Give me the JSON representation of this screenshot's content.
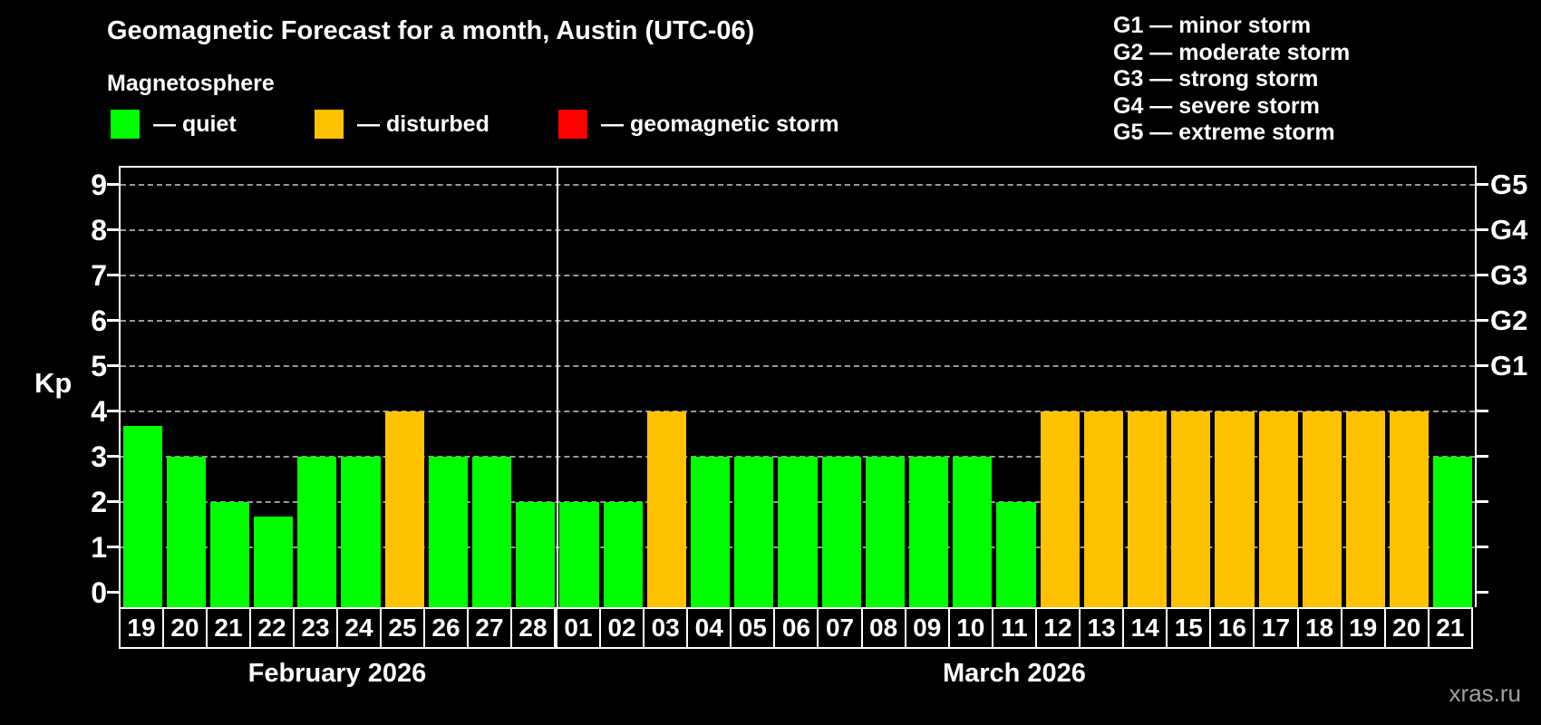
{
  "title": "Geomagnetic Forecast for a month, Austin (UTC-06)",
  "subtitle": "Magnetosphere",
  "watermark": "xras.ru",
  "colors": {
    "quiet": "#00ff00",
    "disturbed": "#ffc200",
    "storm": "#ff0000",
    "grid": "#999999",
    "axis": "#ffffff",
    "background": "#000000"
  },
  "legend": [
    {
      "key": "quiet",
      "label": "— quiet"
    },
    {
      "key": "disturbed",
      "label": "— disturbed"
    },
    {
      "key": "storm",
      "label": "— geomagnetic storm"
    }
  ],
  "storm_scale": [
    "G1 — minor storm",
    "G2 — moderate storm",
    "G3 — strong storm",
    "G4 — severe storm",
    "G5 — extreme storm"
  ],
  "chart_data": {
    "type": "bar",
    "title": "Geomagnetic Forecast for a month, Austin (UTC-06)",
    "xlabel": "",
    "ylabel": "Kp",
    "ylim": [
      0,
      9
    ],
    "y_ticks": [
      0,
      1,
      2,
      3,
      4,
      5,
      6,
      7,
      8,
      9
    ],
    "grid": "horizontal dashed at each integer Kp 1-9",
    "legend_position": "top",
    "right_axis": [
      {
        "label": "G1",
        "kp": 5
      },
      {
        "label": "G2",
        "kp": 6
      },
      {
        "label": "G3",
        "kp": 7
      },
      {
        "label": "G4",
        "kp": 8
      },
      {
        "label": "G5",
        "kp": 9
      }
    ],
    "months": [
      {
        "label": "February 2026",
        "days": [
          {
            "day": "19",
            "kp": 3.67,
            "status": "quiet"
          },
          {
            "day": "20",
            "kp": 3,
            "status": "quiet"
          },
          {
            "day": "21",
            "kp": 2,
            "status": "quiet"
          },
          {
            "day": "22",
            "kp": 1.67,
            "status": "quiet"
          },
          {
            "day": "23",
            "kp": 3,
            "status": "quiet"
          },
          {
            "day": "24",
            "kp": 3,
            "status": "quiet"
          },
          {
            "day": "25",
            "kp": 4,
            "status": "disturbed"
          },
          {
            "day": "26",
            "kp": 3,
            "status": "quiet"
          },
          {
            "day": "27",
            "kp": 3,
            "status": "quiet"
          },
          {
            "day": "28",
            "kp": 2,
            "status": "quiet"
          }
        ]
      },
      {
        "label": "March 2026",
        "days": [
          {
            "day": "01",
            "kp": 2,
            "status": "quiet"
          },
          {
            "day": "02",
            "kp": 2,
            "status": "quiet"
          },
          {
            "day": "03",
            "kp": 4,
            "status": "disturbed"
          },
          {
            "day": "04",
            "kp": 3,
            "status": "quiet"
          },
          {
            "day": "05",
            "kp": 3,
            "status": "quiet"
          },
          {
            "day": "06",
            "kp": 3,
            "status": "quiet"
          },
          {
            "day": "07",
            "kp": 3,
            "status": "quiet"
          },
          {
            "day": "08",
            "kp": 3,
            "status": "quiet"
          },
          {
            "day": "09",
            "kp": 3,
            "status": "quiet"
          },
          {
            "day": "10",
            "kp": 3,
            "status": "quiet"
          },
          {
            "day": "11",
            "kp": 2,
            "status": "quiet"
          },
          {
            "day": "12",
            "kp": 4,
            "status": "disturbed"
          },
          {
            "day": "13",
            "kp": 4,
            "status": "disturbed"
          },
          {
            "day": "14",
            "kp": 4,
            "status": "disturbed"
          },
          {
            "day": "15",
            "kp": 4,
            "status": "disturbed"
          },
          {
            "day": "16",
            "kp": 4,
            "status": "disturbed"
          },
          {
            "day": "17",
            "kp": 4,
            "status": "disturbed"
          },
          {
            "day": "18",
            "kp": 4,
            "status": "disturbed"
          },
          {
            "day": "19",
            "kp": 4,
            "status": "disturbed"
          },
          {
            "day": "20",
            "kp": 4,
            "status": "disturbed"
          },
          {
            "day": "21",
            "kp": 3,
            "status": "quiet"
          }
        ]
      }
    ]
  }
}
